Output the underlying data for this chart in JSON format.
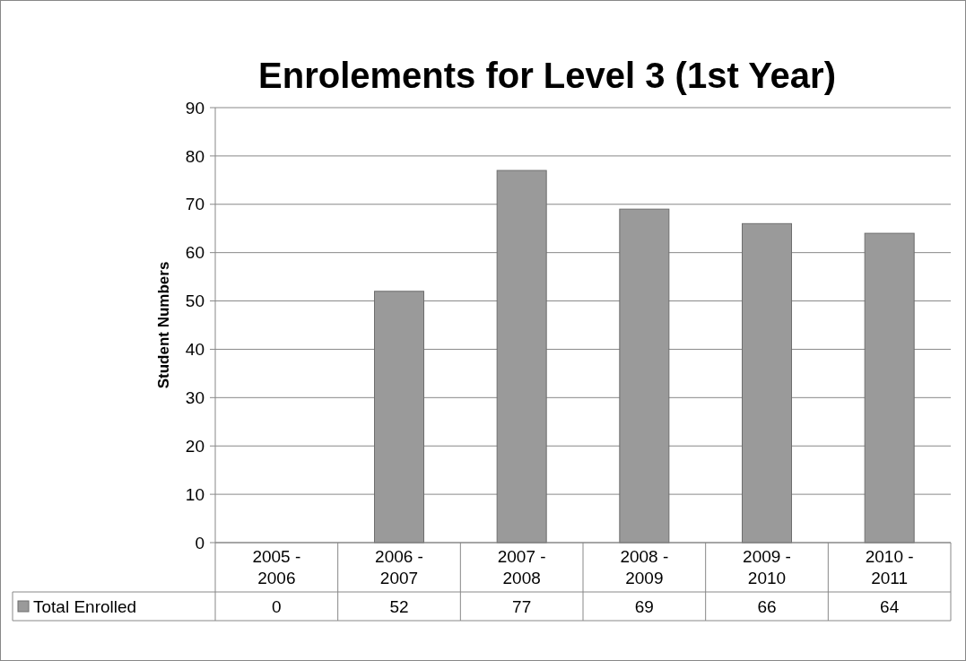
{
  "chart_data": {
    "type": "bar",
    "title": "Enrolements for Level 3 (1st Year)",
    "ylabel": "Student Numbers",
    "categories": [
      "2005 - 2006",
      "2006 - 2007",
      "2007 - 2008",
      "2008 - 2009",
      "2009 - 2010",
      "2010 - 2011"
    ],
    "series": [
      {
        "name": "Total Enrolled",
        "color": "#9a9a9a",
        "values": [
          0,
          52,
          77,
          69,
          66,
          64
        ]
      }
    ],
    "ylim": [
      0,
      90
    ],
    "yticks": [
      0,
      10,
      20,
      30,
      40,
      50,
      60,
      70,
      80,
      90
    ],
    "grid": "y",
    "data_labels": true,
    "legend": "bottom left"
  }
}
